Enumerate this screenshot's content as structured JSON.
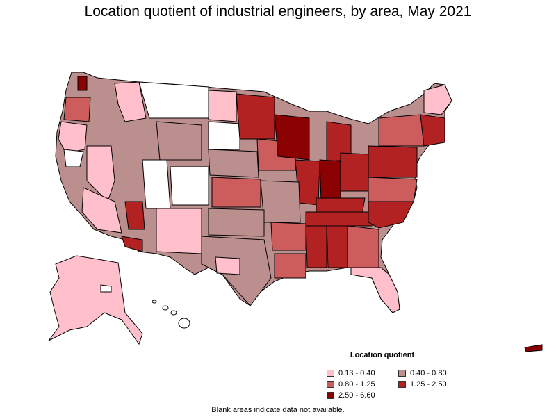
{
  "title": "Location quotient of industrial engineers, by area, May 2021",
  "legend": {
    "title": "Location quotient",
    "items": [
      {
        "label": "0.13 - 0.40",
        "color": "#ffc0cb"
      },
      {
        "label": "0.40 - 0.80",
        "color": "#bc8f8f"
      },
      {
        "label": "0.80 - 1.25",
        "color": "#cd5c5c"
      },
      {
        "label": "1.25 - 2.50",
        "color": "#b22222"
      },
      {
        "label": "2.50 - 6.60",
        "color": "#8b0000"
      }
    ]
  },
  "footnote": "Blank areas indicate data not available.",
  "colors": {
    "border": "#000000",
    "blank": "#ffffff"
  }
}
